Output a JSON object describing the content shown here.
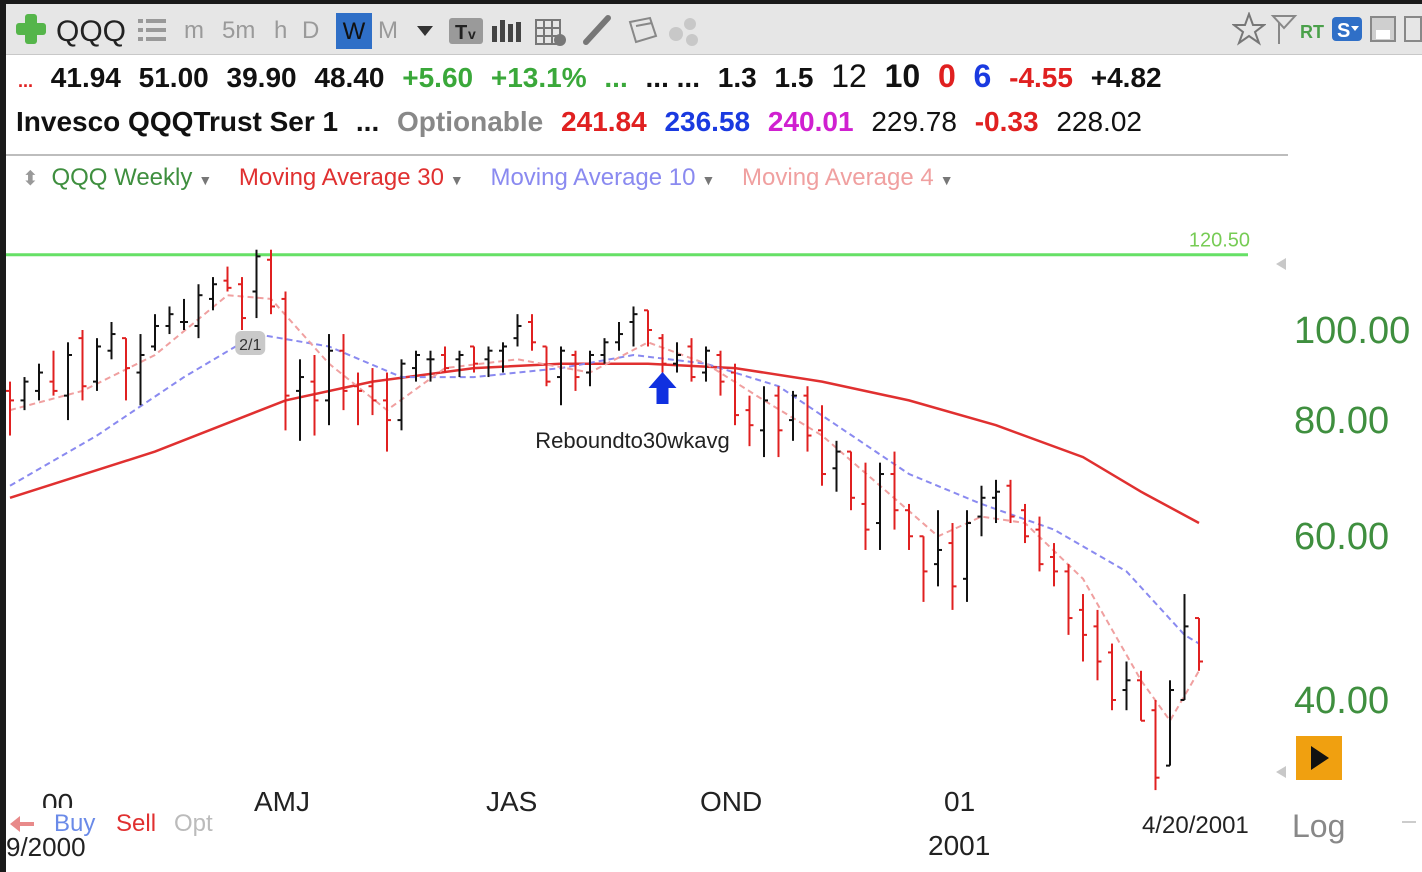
{
  "toolbar": {
    "symbol": "QQQ",
    "timeframes": [
      "m",
      "5m",
      "h",
      "D",
      "W",
      "M"
    ],
    "active_timeframe": "W",
    "icons": [
      "add-icon",
      "list-icon",
      "dropdown-icon",
      "text-icon",
      "bars-icon",
      "grid-icon",
      "pencil-icon",
      "folder-icon",
      "share-icon",
      "star-icon",
      "flag-icon",
      "rt-icon",
      "s-icon",
      "save-icon",
      "more-icon"
    ]
  },
  "quote_row1": {
    "dots_left": "...",
    "v1": "41.94",
    "v2": "51.00",
    "v3": "39.90",
    "v4": "48.40",
    "change": "+5.60",
    "change_pct": "+13.1%",
    "dots_green": "...",
    "dots_black": "... ...",
    "r1": "1.3",
    "r2": "1.5",
    "n12": "12",
    "n10": "10",
    "n0": "0",
    "n6": "6",
    "neg": "-4.55",
    "pos": "+4.82"
  },
  "quote_row2": {
    "name": "Invesco QQQTrust Ser 1",
    "dots": "...",
    "optionable": "Optionable",
    "p1": "241.84",
    "p2": "236.58",
    "p3": "240.01",
    "p4": "229.78",
    "p5": "-0.33",
    "p6": "228.02"
  },
  "legend": {
    "series": "QQQ Weekly",
    "ma30": "Moving Average 30",
    "ma10": "Moving Average 10",
    "ma4": "Moving Average 4"
  },
  "colors": {
    "up_bar": "#111111",
    "down_bar": "#e02020",
    "ma30": "#e03030",
    "ma10": "#8a8af0",
    "ma4": "#f0a0a0",
    "hline": "#66e066",
    "axis_text": "#3f8f3f",
    "arrow": "#1030e0"
  },
  "chart_data": {
    "type": "ohlc",
    "title": "QQQ Weekly",
    "scale": "log",
    "ylim": [
      31,
      125
    ],
    "y_ticks": [
      "100.00",
      "80.00",
      "60.00",
      "40.00"
    ],
    "y_tick_values": [
      100,
      80,
      60,
      40
    ],
    "x_labels": [
      "AMJ",
      "JAS",
      "OND",
      "01",
      "2001"
    ],
    "x_label_clipped": "00",
    "last_date": "4/20/2001",
    "horizontal_line": 120.5,
    "horizontal_line_label": "120.50",
    "split_marker": "2/1",
    "annotation": "Reboundto30wkavg",
    "scale_label": "Log",
    "bars": [
      {
        "o": 86,
        "h": 88,
        "l": 77,
        "c": 84
      },
      {
        "o": 84,
        "h": 89,
        "l": 82,
        "c": 88
      },
      {
        "o": 86,
        "h": 92,
        "l": 84,
        "c": 90
      },
      {
        "o": 88,
        "h": 95,
        "l": 85,
        "c": 86
      },
      {
        "o": 85,
        "h": 97,
        "l": 80,
        "c": 94
      },
      {
        "o": 98,
        "h": 100,
        "l": 84,
        "c": 87
      },
      {
        "o": 88,
        "h": 98,
        "l": 86,
        "c": 96
      },
      {
        "o": 95,
        "h": 102,
        "l": 93,
        "c": 99
      },
      {
        "o": 98,
        "h": 98,
        "l": 84,
        "c": 91
      },
      {
        "o": 90,
        "h": 99,
        "l": 83,
        "c": 94
      },
      {
        "o": 96,
        "h": 104,
        "l": 95,
        "c": 101
      },
      {
        "o": 101,
        "h": 106,
        "l": 99,
        "c": 104
      },
      {
        "o": 102,
        "h": 108,
        "l": 100,
        "c": 102
      },
      {
        "o": 101,
        "h": 112,
        "l": 98,
        "c": 109
      },
      {
        "o": 108,
        "h": 114,
        "l": 105,
        "c": 112
      },
      {
        "o": 113,
        "h": 117,
        "l": 110,
        "c": 111
      },
      {
        "o": 112,
        "h": 114,
        "l": 100,
        "c": 103
      },
      {
        "o": 110,
        "h": 122,
        "l": 103,
        "c": 120
      },
      {
        "o": 119,
        "h": 122,
        "l": 104,
        "c": 106
      },
      {
        "o": 108,
        "h": 110,
        "l": 78,
        "c": 85
      },
      {
        "o": 86,
        "h": 93,
        "l": 76,
        "c": 89
      },
      {
        "o": 88,
        "h": 94,
        "l": 77,
        "c": 84
      },
      {
        "o": 84,
        "h": 99,
        "l": 79,
        "c": 95
      },
      {
        "o": 95,
        "h": 99,
        "l": 82,
        "c": 86
      },
      {
        "o": 87,
        "h": 90,
        "l": 79,
        "c": 86
      },
      {
        "o": 87,
        "h": 91,
        "l": 81,
        "c": 84
      },
      {
        "o": 84,
        "h": 90,
        "l": 74,
        "c": 80
      },
      {
        "o": 80,
        "h": 93,
        "l": 78,
        "c": 92
      },
      {
        "o": 91,
        "h": 95,
        "l": 88,
        "c": 94
      },
      {
        "o": 93,
        "h": 95,
        "l": 88,
        "c": 93
      },
      {
        "o": 94,
        "h": 96,
        "l": 90,
        "c": 91
      },
      {
        "o": 93,
        "h": 95,
        "l": 89,
        "c": 94
      },
      {
        "o": 96,
        "h": 96,
        "l": 90,
        "c": 92
      },
      {
        "o": 93,
        "h": 96,
        "l": 89,
        "c": 95
      },
      {
        "o": 95,
        "h": 97,
        "l": 90,
        "c": 96
      },
      {
        "o": 98,
        "h": 104,
        "l": 96,
        "c": 101
      },
      {
        "o": 102,
        "h": 104,
        "l": 95,
        "c": 97
      },
      {
        "o": 96,
        "h": 96,
        "l": 87,
        "c": 88
      },
      {
        "o": 89,
        "h": 96,
        "l": 83,
        "c": 95
      },
      {
        "o": 94,
        "h": 95,
        "l": 86,
        "c": 89
      },
      {
        "o": 90,
        "h": 95,
        "l": 87,
        "c": 94
      },
      {
        "o": 94,
        "h": 98,
        "l": 92,
        "c": 97
      },
      {
        "o": 97,
        "h": 102,
        "l": 95,
        "c": 99
      },
      {
        "o": 102,
        "h": 106,
        "l": 96,
        "c": 104
      },
      {
        "o": 105,
        "h": 105,
        "l": 96,
        "c": 100
      },
      {
        "o": 98,
        "h": 99,
        "l": 90,
        "c": 92
      },
      {
        "o": 92,
        "h": 97,
        "l": 90,
        "c": 94
      },
      {
        "o": 96,
        "h": 98,
        "l": 88,
        "c": 89
      },
      {
        "o": 90,
        "h": 96,
        "l": 88,
        "c": 95
      },
      {
        "o": 94,
        "h": 95,
        "l": 85,
        "c": 88
      },
      {
        "o": 90,
        "h": 92,
        "l": 79,
        "c": 81
      },
      {
        "o": 82,
        "h": 85,
        "l": 75,
        "c": 79
      },
      {
        "o": 78,
        "h": 87,
        "l": 73,
        "c": 84
      },
      {
        "o": 85,
        "h": 87,
        "l": 73,
        "c": 78
      },
      {
        "o": 80,
        "h": 86,
        "l": 76,
        "c": 85
      },
      {
        "o": 85,
        "h": 87,
        "l": 74,
        "c": 77
      },
      {
        "o": 78,
        "h": 83,
        "l": 68,
        "c": 70
      },
      {
        "o": 71,
        "h": 76,
        "l": 67,
        "c": 74
      },
      {
        "o": 74,
        "h": 74,
        "l": 64,
        "c": 66
      },
      {
        "o": 65,
        "h": 72,
        "l": 58,
        "c": 61
      },
      {
        "o": 62,
        "h": 72,
        "l": 58,
        "c": 70
      },
      {
        "o": 70,
        "h": 74,
        "l": 61,
        "c": 64
      },
      {
        "o": 64,
        "h": 65,
        "l": 58,
        "c": 60
      },
      {
        "o": 60,
        "h": 60,
        "l": 51,
        "c": 55
      },
      {
        "o": 56,
        "h": 64,
        "l": 53,
        "c": 58
      },
      {
        "o": 59,
        "h": 62,
        "l": 50,
        "c": 53
      },
      {
        "o": 54,
        "h": 64,
        "l": 51,
        "c": 62
      },
      {
        "o": 63,
        "h": 68,
        "l": 60,
        "c": 66
      },
      {
        "o": 66,
        "h": 69,
        "l": 62,
        "c": 67
      },
      {
        "o": 68,
        "h": 69,
        "l": 62,
        "c": 63
      },
      {
        "o": 64,
        "h": 65,
        "l": 59,
        "c": 60
      },
      {
        "o": 61,
        "h": 63,
        "l": 55,
        "c": 56
      },
      {
        "o": 57,
        "h": 59,
        "l": 53,
        "c": 55
      },
      {
        "o": 55,
        "h": 56,
        "l": 47,
        "c": 49
      },
      {
        "o": 50,
        "h": 52,
        "l": 44,
        "c": 47
      },
      {
        "o": 48,
        "h": 50,
        "l": 42,
        "c": 44
      },
      {
        "o": 45,
        "h": 46,
        "l": 39,
        "c": 40
      },
      {
        "o": 41,
        "h": 44,
        "l": 39,
        "c": 42
      },
      {
        "o": 42,
        "h": 43,
        "l": 38,
        "c": 38
      },
      {
        "o": 39,
        "h": 40,
        "l": 32,
        "c": 33
      },
      {
        "o": 34,
        "h": 42,
        "l": 34,
        "c": 41
      },
      {
        "o": 40,
        "h": 52,
        "l": 40,
        "c": 48
      },
      {
        "o": 49,
        "h": 49,
        "l": 43,
        "c": 44
      }
    ],
    "ma30": [
      [
        0,
        66
      ],
      [
        10,
        74
      ],
      [
        19,
        84
      ],
      [
        25,
        88
      ],
      [
        32,
        91
      ],
      [
        38,
        92
      ],
      [
        44,
        92
      ],
      [
        50,
        91
      ],
      [
        56,
        88
      ],
      [
        62,
        84
      ],
      [
        68,
        79
      ],
      [
        74,
        73
      ],
      [
        78,
        67
      ],
      [
        82,
        62
      ]
    ],
    "ma10": [
      [
        0,
        68
      ],
      [
        6,
        77
      ],
      [
        12,
        89
      ],
      [
        17,
        99
      ],
      [
        22,
        96
      ],
      [
        27,
        89
      ],
      [
        32,
        89
      ],
      [
        38,
        91
      ],
      [
        43,
        94
      ],
      [
        48,
        92
      ],
      [
        53,
        87
      ],
      [
        57,
        79
      ],
      [
        62,
        70
      ],
      [
        67,
        65
      ],
      [
        72,
        61
      ],
      [
        77,
        55
      ],
      [
        81,
        47
      ],
      [
        82,
        46
      ]
    ],
    "ma4": [
      [
        0,
        82
      ],
      [
        5,
        86
      ],
      [
        10,
        94
      ],
      [
        15,
        109
      ],
      [
        18,
        108
      ],
      [
        22,
        92
      ],
      [
        26,
        82
      ],
      [
        30,
        91
      ],
      [
        35,
        93
      ],
      [
        40,
        90
      ],
      [
        44,
        97
      ],
      [
        48,
        92
      ],
      [
        52,
        84
      ],
      [
        56,
        77
      ],
      [
        60,
        68
      ],
      [
        64,
        60
      ],
      [
        67,
        63
      ],
      [
        70,
        62
      ],
      [
        74,
        54
      ],
      [
        78,
        42
      ],
      [
        80,
        38
      ],
      [
        82,
        43
      ]
    ]
  },
  "bottom": {
    "buy": "Buy",
    "sell": "Sell",
    "opt": "Opt",
    "left_date": "9/2000"
  }
}
